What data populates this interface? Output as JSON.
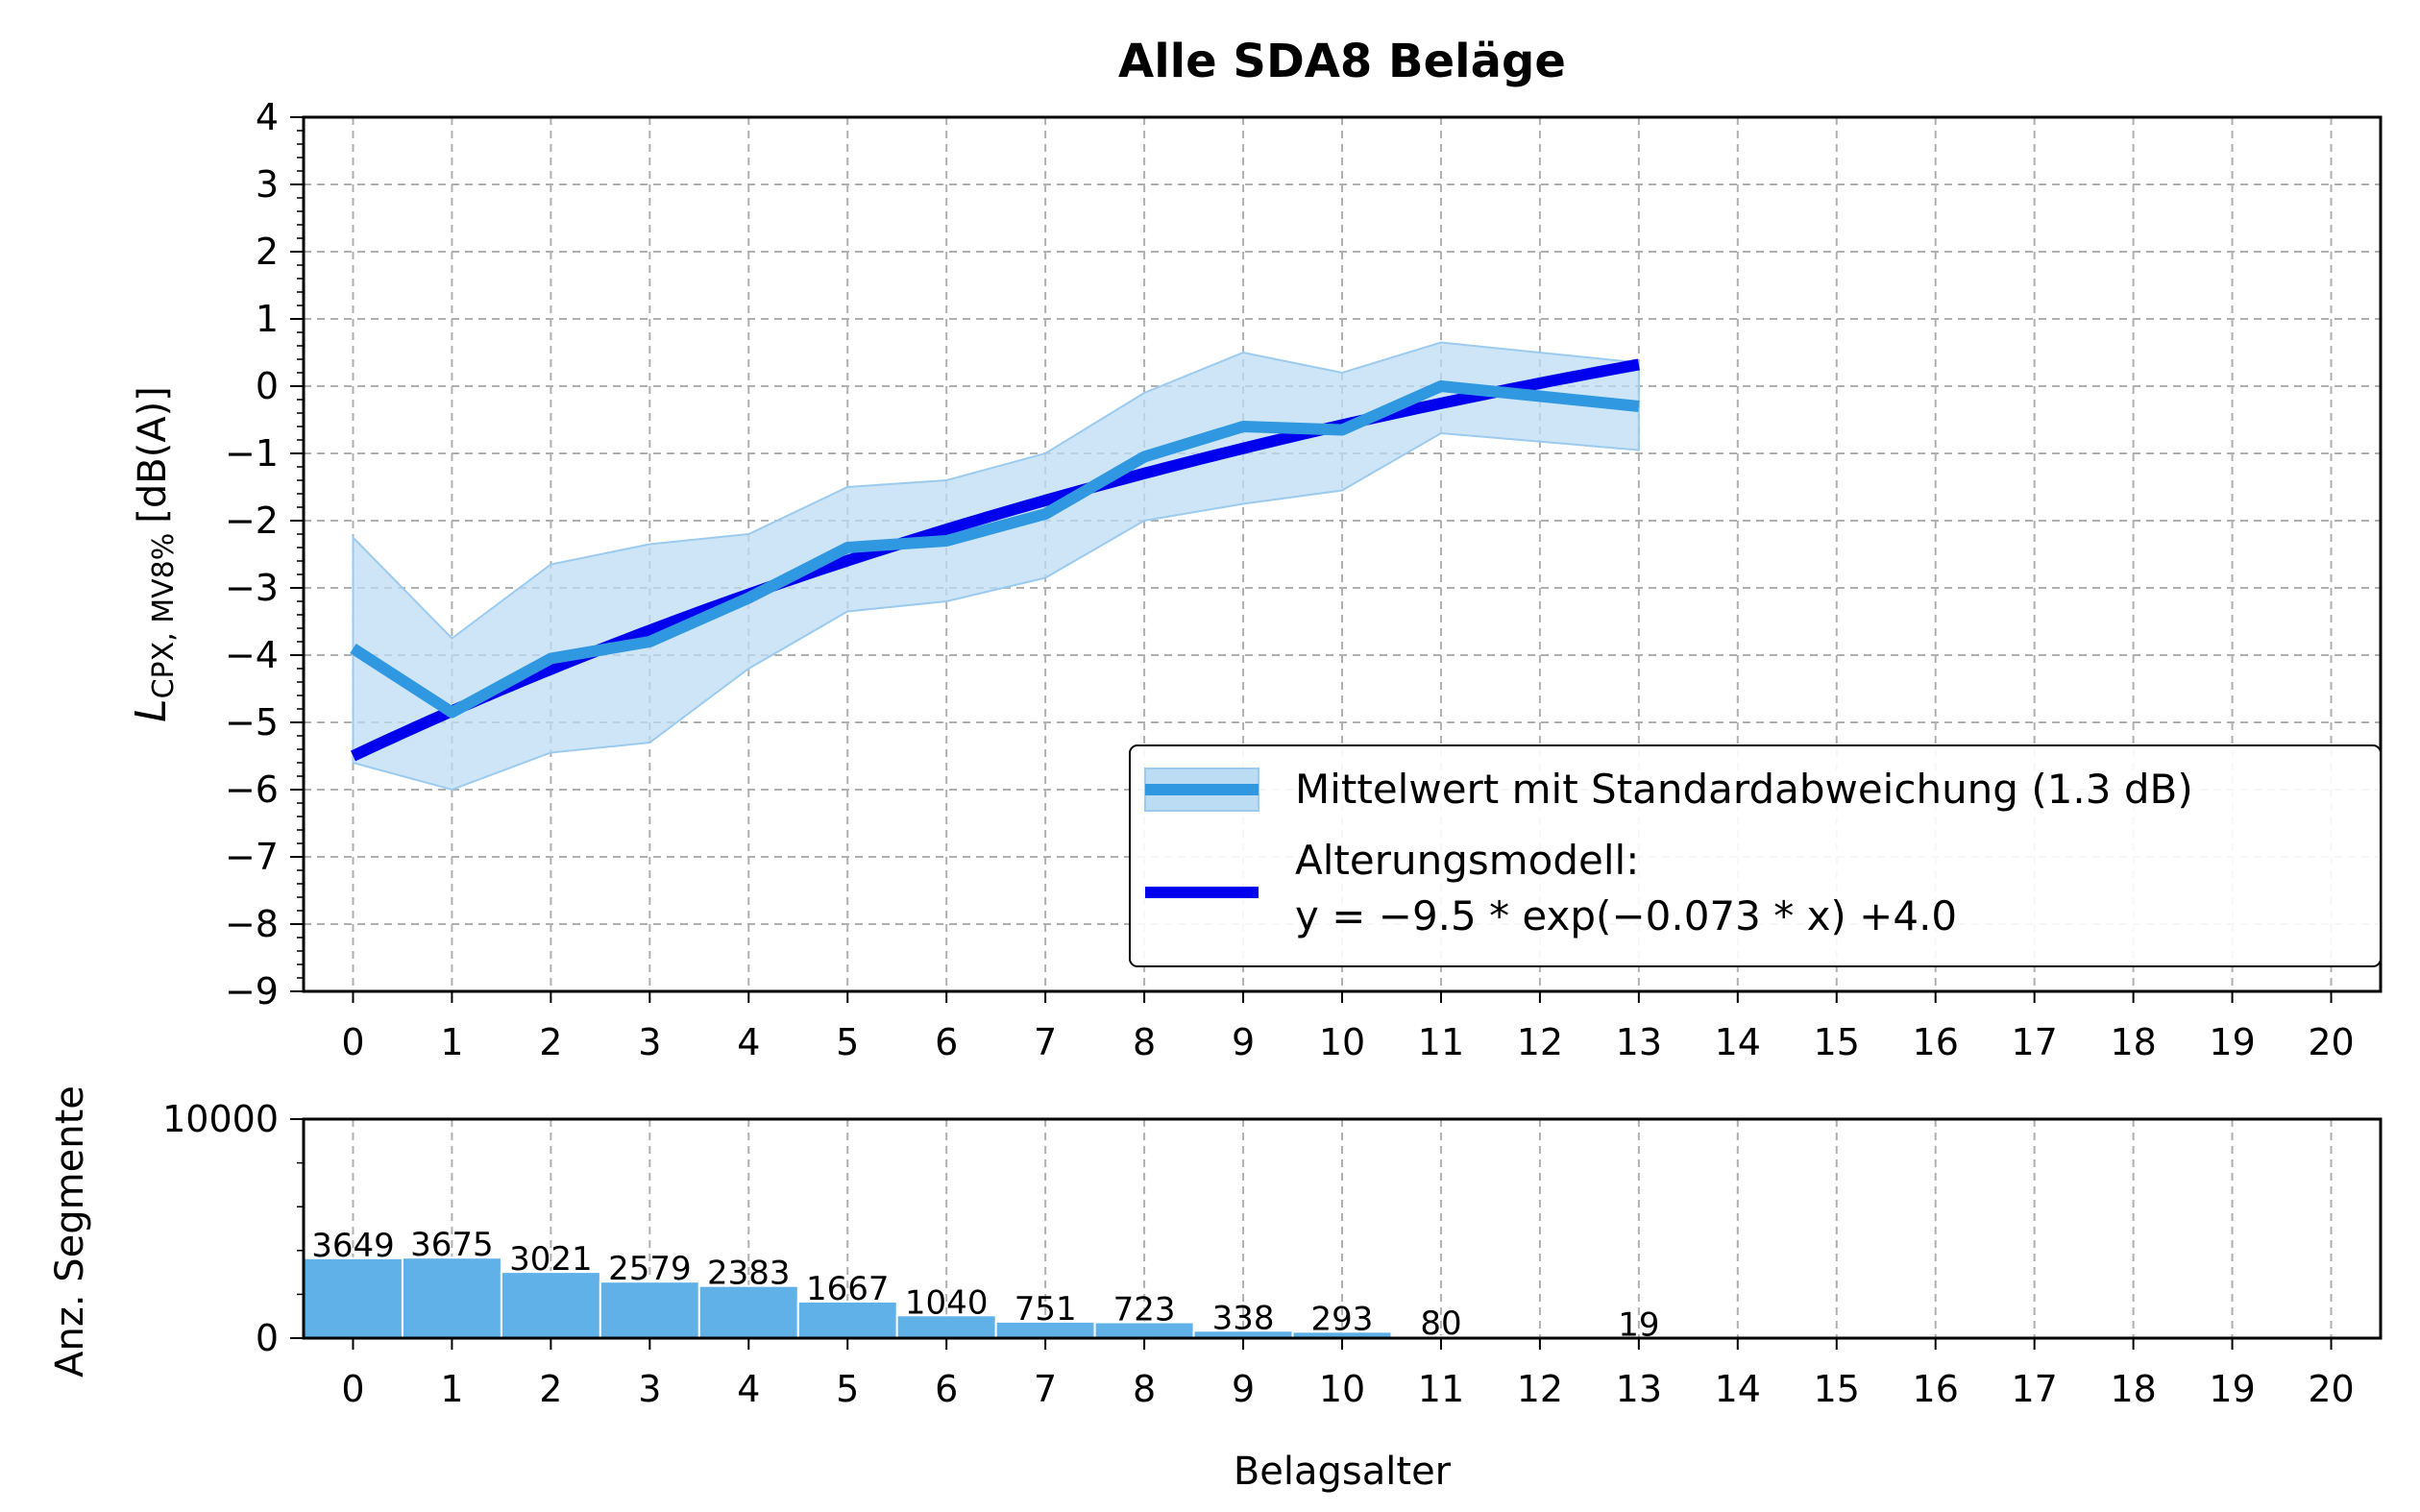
{
  "chart_data": [
    {
      "type": "line",
      "title": "Alle SDA8 Beläge",
      "xlabel": "",
      "ylabel": "L_CPX, MV8% [dB(A)]",
      "ylabel_parts": {
        "main": "L",
        "sub": "CPX, MV8%",
        "unit": "[dB(A)]"
      },
      "xlim": [
        -0.5,
        20.5
      ],
      "ylim": [
        -9,
        4
      ],
      "xticks": [
        "0",
        "1",
        "2",
        "3",
        "4",
        "5",
        "6",
        "7",
        "8",
        "9",
        "10",
        "11",
        "12",
        "13",
        "14",
        "15",
        "16",
        "17",
        "18",
        "19",
        "20"
      ],
      "yticks": [
        "−9",
        "−8",
        "−7",
        "−6",
        "−5",
        "−4",
        "−3",
        "−2",
        "−1",
        "0",
        "1",
        "2",
        "3",
        "4"
      ],
      "grid": true,
      "legend_position": "lower-right",
      "series": [
        {
          "name": "Mittelwert mit Standardabweichung (1.3 dB)",
          "color": "#2f98e0",
          "band_color": "#bcdcf3",
          "x": [
            0,
            1,
            2,
            3,
            4,
            5,
            6,
            7,
            8,
            9,
            10,
            11,
            13
          ],
          "mean": [
            -3.9,
            -4.85,
            -4.05,
            -3.8,
            -3.15,
            -2.4,
            -2.3,
            -1.9,
            -1.05,
            -0.6,
            -0.65,
            0.0,
            -0.3
          ],
          "upper": [
            -2.25,
            -3.75,
            -2.65,
            -2.35,
            -2.2,
            -1.5,
            -1.4,
            -1.0,
            -0.1,
            0.5,
            0.2,
            0.65,
            0.35
          ],
          "lower": [
            -5.6,
            -6.0,
            -5.45,
            -5.3,
            -4.2,
            -3.35,
            -3.2,
            -2.85,
            -2.0,
            -1.75,
            -1.55,
            -0.7,
            -0.95
          ]
        },
        {
          "name": "Alterungsmodell:",
          "name_line2": "y = −9.5 * exp(−0.073 * x) +4.0",
          "color": "#0000ee",
          "model": {
            "a": -9.5,
            "b": -0.073,
            "c": 4.0
          },
          "x_range": [
            0,
            13
          ]
        }
      ]
    },
    {
      "type": "bar",
      "title": "",
      "xlabel": "Belagsalter",
      "ylabel": "Anz. Segmente",
      "xlim": [
        -0.5,
        20.5
      ],
      "ylim": [
        0,
        10000
      ],
      "xticks": [
        "0",
        "1",
        "2",
        "3",
        "4",
        "5",
        "6",
        "7",
        "8",
        "9",
        "10",
        "11",
        "12",
        "13",
        "14",
        "15",
        "16",
        "17",
        "18",
        "19",
        "20"
      ],
      "yticks": [
        "0",
        "10000"
      ],
      "grid": true,
      "bar_color": "#5fb1e8",
      "x": [
        0,
        1,
        2,
        3,
        4,
        5,
        6,
        7,
        8,
        9,
        10,
        11,
        13
      ],
      "values": [
        3649,
        3675,
        3021,
        2579,
        2383,
        1667,
        1040,
        751,
        723,
        338,
        293,
        80,
        19
      ],
      "labels": [
        "3649",
        "3675",
        "3021",
        "2579",
        "2383",
        "1667",
        "1040",
        "751",
        "723",
        "338",
        "293",
        "80",
        "19"
      ]
    }
  ]
}
